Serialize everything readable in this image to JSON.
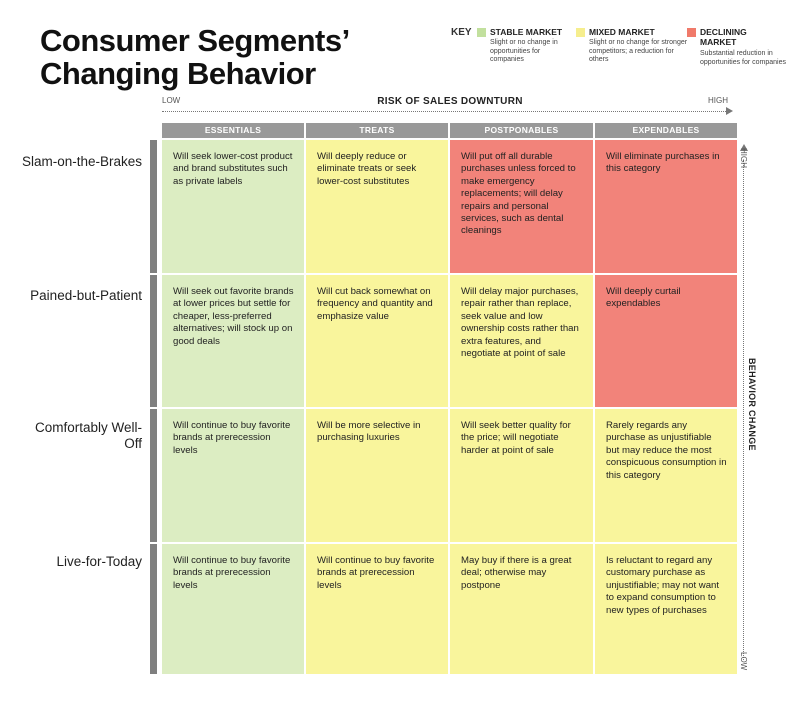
{
  "title": {
    "line1": "Consumer Segments’",
    "line2": "Changing Behavior"
  },
  "key": {
    "label": "KEY",
    "items": [
      {
        "title": "STABLE MARKET",
        "desc": "Slight or no change in opportunities for companies",
        "color": "#c2e09e"
      },
      {
        "title": "MIXED MARKET",
        "desc": "Slight or no change for stronger competitors; a reduction for others",
        "color": "#f6ee8e"
      },
      {
        "title": "DECLINING MARKET",
        "desc": "Substantial reduction in opportunities for companies",
        "color": "#f07a6a"
      }
    ]
  },
  "x_axis": {
    "title": "RISK OF SALES DOWNTURN",
    "low": "LOW",
    "high": "HIGH"
  },
  "y_axis": {
    "title": "BEHAVIOR CHANGE",
    "low": "LOW",
    "high": "HIGH"
  },
  "columns": [
    "ESSENTIALS",
    "TREATS",
    "POSTPONABLES",
    "EXPENDABLES"
  ],
  "colors": {
    "stable": "#dcedc2",
    "mixed": "#f9f59c",
    "declining": "#f2837a",
    "header": "#999999"
  },
  "rows": [
    {
      "label": "Slam-on-the-Brakes",
      "cells": [
        {
          "text": "Will seek lower-cost product and brand substitutes such as private labels",
          "market": "stable"
        },
        {
          "text": "Will deeply reduce or eliminate treats or seek lower-cost substitutes",
          "market": "mixed"
        },
        {
          "text": "Will put off all durable purchases unless forced to make emergency replacements; will delay repairs and personal services, such as dental cleanings",
          "market": "declining"
        },
        {
          "text": "Will eliminate purchases in this category",
          "market": "declining"
        }
      ]
    },
    {
      "label": "Pained-but-Patient",
      "cells": [
        {
          "text": "Will seek out favorite brands at lower prices but settle for cheaper, less-preferred alternatives; will stock up on good deals",
          "market": "stable"
        },
        {
          "text": "Will cut back somewhat on frequency and quantity and emphasize value",
          "market": "mixed"
        },
        {
          "text": "Will delay major purchases, repair rather than replace, seek value and low ownership costs rather than extra features, and negotiate at point of sale",
          "market": "mixed"
        },
        {
          "text": "Will deeply curtail expendables",
          "market": "declining"
        }
      ]
    },
    {
      "label": "Comfortably Well-Off",
      "cells": [
        {
          "text": "Will continue to buy favorite brands at prerecession levels",
          "market": "stable"
        },
        {
          "text": "Will be more selective in purchasing luxuries",
          "market": "mixed"
        },
        {
          "text": "Will seek better quality for the price; will negotiate harder at point of sale",
          "market": "mixed"
        },
        {
          "text": "Rarely regards any purchase as unjustifiable but may reduce the most conspicuous consumption in this category",
          "market": "mixed"
        }
      ]
    },
    {
      "label": "Live-for-Today",
      "cells": [
        {
          "text": "Will continue to buy favorite brands at prerecession levels",
          "market": "stable"
        },
        {
          "text": "Will continue to buy favorite brands at prerecession levels",
          "market": "mixed"
        },
        {
          "text": "May buy if there is a great deal; otherwise may postpone",
          "market": "mixed"
        },
        {
          "text": "Is reluctant to regard any customary purchase as unjustifiable; may not want to expand consumption to new types of purchases",
          "market": "mixed"
        }
      ]
    }
  ]
}
